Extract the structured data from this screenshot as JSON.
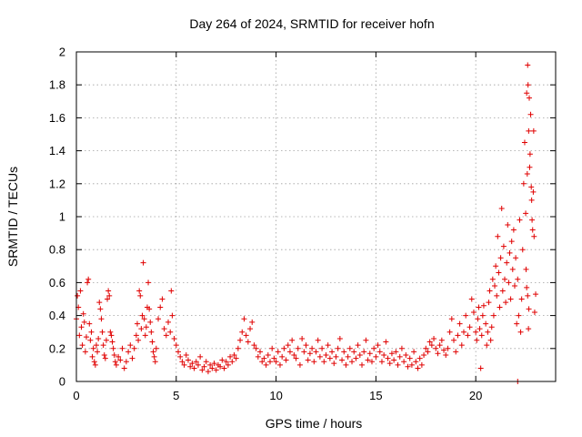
{
  "chart_data": {
    "type": "scatter",
    "title": "Day 264 of 2024, SRMTID for receiver hofn",
    "xlabel": "GPS time / hours",
    "ylabel": "SRMTID / TECUs",
    "xlim": [
      0,
      24
    ],
    "ylim": [
      0,
      2
    ],
    "xticks": [
      0,
      5,
      10,
      15,
      20
    ],
    "xtick_labels": [
      "0",
      "5",
      "10",
      "15",
      "20"
    ],
    "yticks": [
      0,
      0.2,
      0.4,
      0.6,
      0.8,
      1,
      1.2,
      1.4,
      1.6,
      1.8,
      2
    ],
    "ytick_labels": [
      "0",
      "0.2",
      "0.4",
      "0.6",
      "0.8",
      "1",
      "1.2",
      "1.4",
      "1.6",
      "1.8",
      "2"
    ],
    "grid": true,
    "marker": "+",
    "color": "#e00000",
    "series": [
      {
        "name": "SRMTID",
        "points": [
          [
            0.0,
            0.38
          ],
          [
            0.05,
            0.52
          ],
          [
            0.1,
            0.45
          ],
          [
            0.15,
            0.28
          ],
          [
            0.2,
            0.55
          ],
          [
            0.25,
            0.33
          ],
          [
            0.3,
            0.22
          ],
          [
            0.35,
            0.41
          ],
          [
            0.4,
            0.36
          ],
          [
            0.45,
            0.18
          ],
          [
            0.5,
            0.27
          ],
          [
            0.55,
            0.6
          ],
          [
            0.6,
            0.62
          ],
          [
            0.65,
            0.35
          ],
          [
            0.7,
            0.25
          ],
          [
            0.75,
            0.3
          ],
          [
            0.8,
            0.15
          ],
          [
            0.85,
            0.2
          ],
          [
            0.9,
            0.12
          ],
          [
            0.95,
            0.1
          ],
          [
            1.0,
            0.22
          ],
          [
            1.05,
            0.18
          ],
          [
            1.1,
            0.26
          ],
          [
            1.15,
            0.48
          ],
          [
            1.2,
            0.44
          ],
          [
            1.25,
            0.38
          ],
          [
            1.3,
            0.3
          ],
          [
            1.35,
            0.22
          ],
          [
            1.4,
            0.16
          ],
          [
            1.45,
            0.14
          ],
          [
            1.5,
            0.25
          ],
          [
            1.55,
            0.5
          ],
          [
            1.6,
            0.55
          ],
          [
            1.65,
            0.52
          ],
          [
            1.7,
            0.3
          ],
          [
            1.75,
            0.28
          ],
          [
            1.8,
            0.24
          ],
          [
            1.85,
            0.2
          ],
          [
            1.9,
            0.16
          ],
          [
            1.95,
            0.12
          ],
          [
            2.0,
            0.1
          ],
          [
            2.1,
            0.15
          ],
          [
            2.2,
            0.13
          ],
          [
            2.3,
            0.2
          ],
          [
            2.4,
            0.08
          ],
          [
            2.5,
            0.12
          ],
          [
            2.6,
            0.18
          ],
          [
            2.7,
            0.22
          ],
          [
            2.8,
            0.14
          ],
          [
            2.9,
            0.2
          ],
          [
            3.0,
            0.28
          ],
          [
            3.05,
            0.35
          ],
          [
            3.1,
            0.25
          ],
          [
            3.15,
            0.55
          ],
          [
            3.2,
            0.52
          ],
          [
            3.25,
            0.32
          ],
          [
            3.3,
            0.4
          ],
          [
            3.35,
            0.72
          ],
          [
            3.4,
            0.38
          ],
          [
            3.45,
            0.28
          ],
          [
            3.5,
            0.33
          ],
          [
            3.55,
            0.45
          ],
          [
            3.6,
            0.6
          ],
          [
            3.65,
            0.44
          ],
          [
            3.7,
            0.36
          ],
          [
            3.75,
            0.3
          ],
          [
            3.8,
            0.24
          ],
          [
            3.85,
            0.18
          ],
          [
            3.9,
            0.15
          ],
          [
            3.95,
            0.12
          ],
          [
            4.0,
            0.2
          ],
          [
            4.1,
            0.38
          ],
          [
            4.2,
            0.45
          ],
          [
            4.3,
            0.5
          ],
          [
            4.4,
            0.32
          ],
          [
            4.5,
            0.28
          ],
          [
            4.6,
            0.36
          ],
          [
            4.7,
            0.3
          ],
          [
            4.75,
            0.55
          ],
          [
            4.8,
            0.4
          ],
          [
            4.9,
            0.26
          ],
          [
            5.0,
            0.22
          ],
          [
            5.1,
            0.18
          ],
          [
            5.2,
            0.15
          ],
          [
            5.3,
            0.12
          ],
          [
            5.4,
            0.1
          ],
          [
            5.5,
            0.16
          ],
          [
            5.6,
            0.13
          ],
          [
            5.7,
            0.09
          ],
          [
            5.8,
            0.11
          ],
          [
            5.9,
            0.08
          ],
          [
            6.0,
            0.12
          ],
          [
            6.1,
            0.1
          ],
          [
            6.2,
            0.15
          ],
          [
            6.3,
            0.07
          ],
          [
            6.4,
            0.09
          ],
          [
            6.5,
            0.12
          ],
          [
            6.6,
            0.06
          ],
          [
            6.7,
            0.1
          ],
          [
            6.8,
            0.08
          ],
          [
            6.9,
            0.11
          ],
          [
            7.0,
            0.07
          ],
          [
            7.1,
            0.1
          ],
          [
            7.2,
            0.09
          ],
          [
            7.3,
            0.13
          ],
          [
            7.4,
            0.08
          ],
          [
            7.5,
            0.12
          ],
          [
            7.6,
            0.1
          ],
          [
            7.7,
            0.15
          ],
          [
            7.8,
            0.12
          ],
          [
            7.9,
            0.16
          ],
          [
            8.0,
            0.14
          ],
          [
            8.1,
            0.2
          ],
          [
            8.2,
            0.25
          ],
          [
            8.3,
            0.3
          ],
          [
            8.4,
            0.38
          ],
          [
            8.5,
            0.28
          ],
          [
            8.6,
            0.24
          ],
          [
            8.7,
            0.32
          ],
          [
            8.8,
            0.36
          ],
          [
            8.9,
            0.22
          ],
          [
            9.0,
            0.2
          ],
          [
            9.1,
            0.15
          ],
          [
            9.2,
            0.18
          ],
          [
            9.3,
            0.12
          ],
          [
            9.4,
            0.14
          ],
          [
            9.5,
            0.1
          ],
          [
            9.6,
            0.16
          ],
          [
            9.7,
            0.12
          ],
          [
            9.8,
            0.2
          ],
          [
            9.9,
            0.14
          ],
          [
            10.0,
            0.12
          ],
          [
            10.1,
            0.18
          ],
          [
            10.2,
            0.1
          ],
          [
            10.3,
            0.15
          ],
          [
            10.4,
            0.2
          ],
          [
            10.5,
            0.13
          ],
          [
            10.6,
            0.22
          ],
          [
            10.7,
            0.18
          ],
          [
            10.8,
            0.25
          ],
          [
            10.9,
            0.16
          ],
          [
            11.0,
            0.14
          ],
          [
            11.1,
            0.2
          ],
          [
            11.2,
            0.1
          ],
          [
            11.3,
            0.26
          ],
          [
            11.4,
            0.18
          ],
          [
            11.5,
            0.22
          ],
          [
            11.6,
            0.13
          ],
          [
            11.7,
            0.17
          ],
          [
            11.8,
            0.2
          ],
          [
            11.9,
            0.12
          ],
          [
            12.0,
            0.18
          ],
          [
            12.1,
            0.25
          ],
          [
            12.2,
            0.15
          ],
          [
            12.3,
            0.2
          ],
          [
            12.4,
            0.12
          ],
          [
            12.5,
            0.16
          ],
          [
            12.6,
            0.22
          ],
          [
            12.7,
            0.14
          ],
          [
            12.8,
            0.18
          ],
          [
            12.9,
            0.11
          ],
          [
            13.0,
            0.15
          ],
          [
            13.1,
            0.2
          ],
          [
            13.2,
            0.26
          ],
          [
            13.3,
            0.13
          ],
          [
            13.4,
            0.18
          ],
          [
            13.5,
            0.1
          ],
          [
            13.6,
            0.15
          ],
          [
            13.7,
            0.2
          ],
          [
            13.8,
            0.12
          ],
          [
            13.9,
            0.18
          ],
          [
            14.0,
            0.14
          ],
          [
            14.1,
            0.22
          ],
          [
            14.2,
            0.16
          ],
          [
            14.3,
            0.1
          ],
          [
            14.4,
            0.18
          ],
          [
            14.5,
            0.25
          ],
          [
            14.6,
            0.13
          ],
          [
            14.7,
            0.17
          ],
          [
            14.8,
            0.12
          ],
          [
            14.9,
            0.2
          ],
          [
            15.0,
            0.15
          ],
          [
            15.1,
            0.22
          ],
          [
            15.2,
            0.18
          ],
          [
            15.3,
            0.12
          ],
          [
            15.4,
            0.16
          ],
          [
            15.5,
            0.24
          ],
          [
            15.6,
            0.14
          ],
          [
            15.7,
            0.11
          ],
          [
            15.8,
            0.17
          ],
          [
            15.9,
            0.13
          ],
          [
            16.0,
            0.18
          ],
          [
            16.1,
            0.1
          ],
          [
            16.2,
            0.15
          ],
          [
            16.3,
            0.2
          ],
          [
            16.4,
            0.12
          ],
          [
            16.5,
            0.16
          ],
          [
            16.6,
            0.09
          ],
          [
            16.7,
            0.14
          ],
          [
            16.8,
            0.1
          ],
          [
            16.9,
            0.18
          ],
          [
            17.0,
            0.12
          ],
          [
            17.1,
            0.08
          ],
          [
            17.2,
            0.14
          ],
          [
            17.3,
            0.1
          ],
          [
            17.4,
            0.16
          ],
          [
            17.5,
            0.2
          ],
          [
            17.6,
            0.18
          ],
          [
            17.7,
            0.24
          ],
          [
            17.8,
            0.22
          ],
          [
            17.9,
            0.26
          ],
          [
            18.0,
            0.2
          ],
          [
            18.1,
            0.17
          ],
          [
            18.2,
            0.22
          ],
          [
            18.3,
            0.25
          ],
          [
            18.4,
            0.19
          ],
          [
            18.5,
            0.16
          ],
          [
            18.6,
            0.2
          ],
          [
            18.7,
            0.3
          ],
          [
            18.8,
            0.38
          ],
          [
            18.9,
            0.25
          ],
          [
            19.0,
            0.18
          ],
          [
            19.1,
            0.28
          ],
          [
            19.2,
            0.35
          ],
          [
            19.3,
            0.22
          ],
          [
            19.4,
            0.3
          ],
          [
            19.5,
            0.4
          ],
          [
            19.6,
            0.28
          ],
          [
            19.7,
            0.33
          ],
          [
            19.8,
            0.5
          ],
          [
            19.9,
            0.42
          ],
          [
            20.0,
            0.3
          ],
          [
            20.05,
            0.25
          ],
          [
            20.1,
            0.38
          ],
          [
            20.15,
            0.45
          ],
          [
            20.2,
            0.32
          ],
          [
            20.25,
            0.08
          ],
          [
            20.3,
            0.28
          ],
          [
            20.35,
            0.4
          ],
          [
            20.4,
            0.46
          ],
          [
            20.5,
            0.35
          ],
          [
            20.55,
            0.22
          ],
          [
            20.6,
            0.3
          ],
          [
            20.65,
            0.48
          ],
          [
            20.7,
            0.55
          ],
          [
            20.75,
            0.25
          ],
          [
            20.8,
            0.33
          ],
          [
            20.85,
            0.62
          ],
          [
            20.9,
            0.4
          ],
          [
            20.95,
            0.58
          ],
          [
            21.0,
            0.7
          ],
          [
            21.05,
            0.52
          ],
          [
            21.1,
            0.88
          ],
          [
            21.15,
            0.66
          ],
          [
            21.2,
            0.45
          ],
          [
            21.25,
            0.75
          ],
          [
            21.3,
            1.05
          ],
          [
            21.35,
            0.55
          ],
          [
            21.4,
            0.82
          ],
          [
            21.45,
            0.62
          ],
          [
            21.5,
            0.48
          ],
          [
            21.55,
            0.72
          ],
          [
            21.6,
            0.95
          ],
          [
            21.65,
            0.6
          ],
          [
            21.7,
            0.78
          ],
          [
            21.75,
            0.5
          ],
          [
            21.8,
            0.85
          ],
          [
            21.85,
            0.68
          ],
          [
            21.9,
            0.92
          ],
          [
            21.95,
            0.58
          ],
          [
            22.0,
            0.75
          ],
          [
            22.05,
            0.35
          ],
          [
            22.1,
            0.62
          ],
          [
            22.15,
            0.4
          ],
          [
            22.2,
            0.98
          ],
          [
            22.25,
            0.3
          ],
          [
            22.3,
            0.5
          ],
          [
            22.35,
            0.8
          ],
          [
            22.4,
            1.2
          ],
          [
            22.45,
            1.45
          ],
          [
            22.5,
            1.02
          ],
          [
            22.55,
            1.75
          ],
          [
            22.6,
            1.92
          ],
          [
            22.65,
            1.52
          ],
          [
            22.7,
            1.3
          ],
          [
            22.75,
            1.62
          ],
          [
            22.8,
            1.1
          ],
          [
            22.85,
            0.92
          ],
          [
            22.9,
            1.52
          ],
          [
            22.95,
            0.42
          ],
          [
            23.0,
            0.53
          ],
          [
            22.62,
            1.8
          ],
          [
            22.68,
            1.72
          ],
          [
            22.72,
            1.38
          ],
          [
            22.78,
            1.18
          ],
          [
            22.58,
            1.26
          ],
          [
            22.82,
            0.98
          ],
          [
            22.88,
            1.15
          ],
          [
            22.92,
            0.88
          ],
          [
            22.52,
            0.68
          ],
          [
            22.55,
            0.57
          ],
          [
            22.6,
            0.52
          ],
          [
            22.66,
            0.44
          ],
          [
            22.64,
            0.32
          ],
          [
            22.1,
            0.0
          ]
        ]
      }
    ]
  }
}
